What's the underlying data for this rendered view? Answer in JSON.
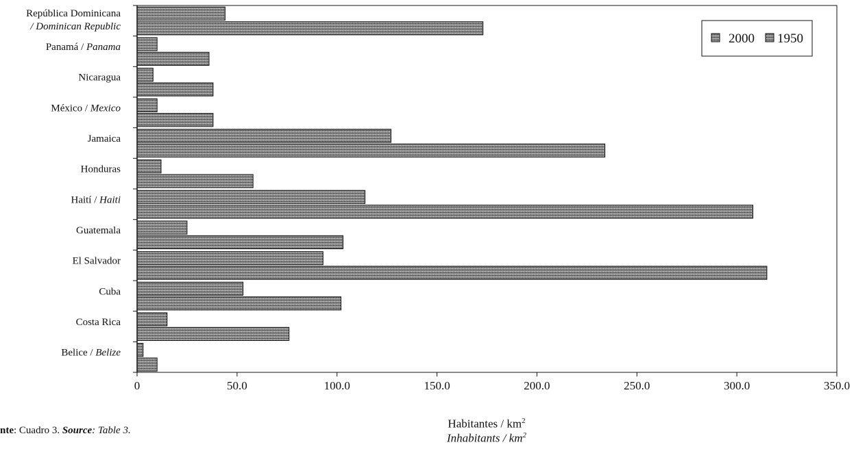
{
  "chart_data": {
    "type": "bar",
    "orientation": "horizontal",
    "categories": [
      {
        "name": "República Dominicana",
        "name_en": "/ Dominican Republic"
      },
      {
        "name": "Panamá / ",
        "name_en": "Panama"
      },
      {
        "name": "Nicaragua",
        "name_en": ""
      },
      {
        "name": "México / ",
        "name_en": "Mexico"
      },
      {
        "name": "Jamaica",
        "name_en": ""
      },
      {
        "name": "Honduras",
        "name_en": ""
      },
      {
        "name": "Haití / ",
        "name_en": "Haiti"
      },
      {
        "name": "Guatemala",
        "name_en": ""
      },
      {
        "name": "El Salvador",
        "name_en": ""
      },
      {
        "name": "Cuba",
        "name_en": ""
      },
      {
        "name": "Costa Rica",
        "name_en": ""
      },
      {
        "name": "Belice / ",
        "name_en": "Belize"
      }
    ],
    "series": [
      {
        "name": "2000",
        "values": [
          44,
          10,
          8,
          10,
          127,
          12,
          114,
          25,
          93,
          53,
          15,
          3
        ]
      },
      {
        "name": "1950",
        "values": [
          173,
          36,
          38,
          38,
          234,
          58,
          308,
          103,
          315,
          102,
          76,
          10
        ]
      }
    ],
    "xlim": [
      0,
      350
    ],
    "xticks": [
      "0",
      "50.0",
      "100.0",
      "150.0",
      "200.0",
      "250.0",
      "300.0",
      "350.0"
    ],
    "xlabel": "Habitantes / km",
    "xlabel_sup": "2",
    "xlabel_en": "Inhabitants / km",
    "xlabel_en_sup": "2",
    "legend_position": "top-right",
    "bar_color": "#6e6e6e",
    "grid": false
  },
  "source": {
    "prefix": "nte",
    "text1": ": Cuadro 3. ",
    "label2": "Source",
    "text2": ": Table 3."
  }
}
